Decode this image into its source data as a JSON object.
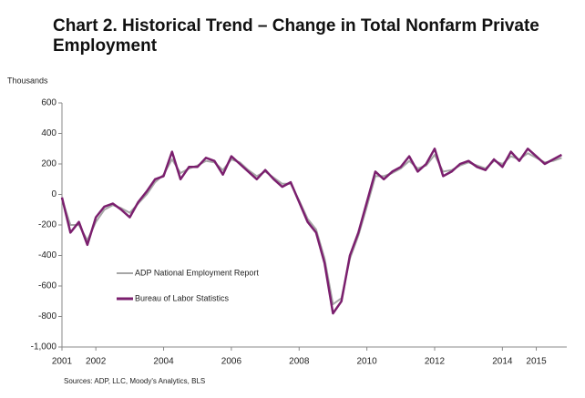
{
  "chart_data": {
    "type": "line",
    "title": "Chart 2. Historical Trend – Change in Total Nonfarm Private Employment",
    "y_label": "Thousands",
    "source": "Sources: ADP, LLC, Moody's Analytics, BLS",
    "x": [
      2001.0,
      2001.25,
      2001.5,
      2001.75,
      2002.0,
      2002.25,
      2002.5,
      2002.75,
      2003.0,
      2003.25,
      2003.5,
      2003.75,
      2004.0,
      2004.25,
      2004.5,
      2004.75,
      2005.0,
      2005.25,
      2005.5,
      2005.75,
      2006.0,
      2006.25,
      2006.5,
      2006.75,
      2007.0,
      2007.25,
      2007.5,
      2007.75,
      2008.0,
      2008.25,
      2008.5,
      2008.75,
      2009.0,
      2009.25,
      2009.5,
      2009.75,
      2010.0,
      2010.25,
      2010.5,
      2010.75,
      2011.0,
      2011.25,
      2011.5,
      2011.75,
      2012.0,
      2012.25,
      2012.5,
      2012.75,
      2013.0,
      2013.25,
      2013.5,
      2013.75,
      2014.0,
      2014.25,
      2014.5,
      2014.75,
      2015.0,
      2015.25,
      2015.5,
      2015.75
    ],
    "series": [
      {
        "name": "ADP National Employment Report",
        "color": "#a6a6a6",
        "values": [
          -30,
          -200,
          -200,
          -300,
          -180,
          -100,
          -70,
          -90,
          -120,
          -60,
          0,
          80,
          130,
          230,
          140,
          170,
          190,
          220,
          210,
          160,
          230,
          210,
          160,
          120,
          150,
          110,
          70,
          70,
          -40,
          -160,
          -230,
          -420,
          -720,
          -680,
          -420,
          -270,
          -80,
          120,
          120,
          140,
          170,
          220,
          170,
          190,
          260,
          150,
          160,
          190,
          210,
          190,
          170,
          220,
          200,
          250,
          230,
          270,
          240,
          210,
          220,
          240
        ]
      },
      {
        "name": "Bureau of Labor Statistics",
        "color": "#7b1f6e",
        "values": [
          -20,
          -250,
          -180,
          -330,
          -150,
          -80,
          -60,
          -100,
          -150,
          -50,
          20,
          100,
          120,
          280,
          100,
          180,
          180,
          240,
          220,
          130,
          250,
          200,
          150,
          100,
          160,
          100,
          50,
          80,
          -50,
          -180,
          -250,
          -450,
          -780,
          -700,
          -400,
          -250,
          -50,
          150,
          100,
          150,
          180,
          250,
          150,
          200,
          300,
          120,
          150,
          200,
          220,
          180,
          160,
          230,
          180,
          280,
          220,
          300,
          250,
          200,
          230,
          260
        ]
      }
    ],
    "xlim": [
      2001,
      2015.9
    ],
    "xticks": [
      2001,
      2002,
      2004,
      2006,
      2008,
      2010,
      2012,
      2014,
      2015
    ],
    "ylim": [
      -1000,
      600
    ],
    "yticks": [
      {
        "value": -1000,
        "label": "-1,000"
      },
      -800,
      -600,
      -400,
      -200,
      0,
      200,
      400,
      600
    ],
    "grid": false
  }
}
